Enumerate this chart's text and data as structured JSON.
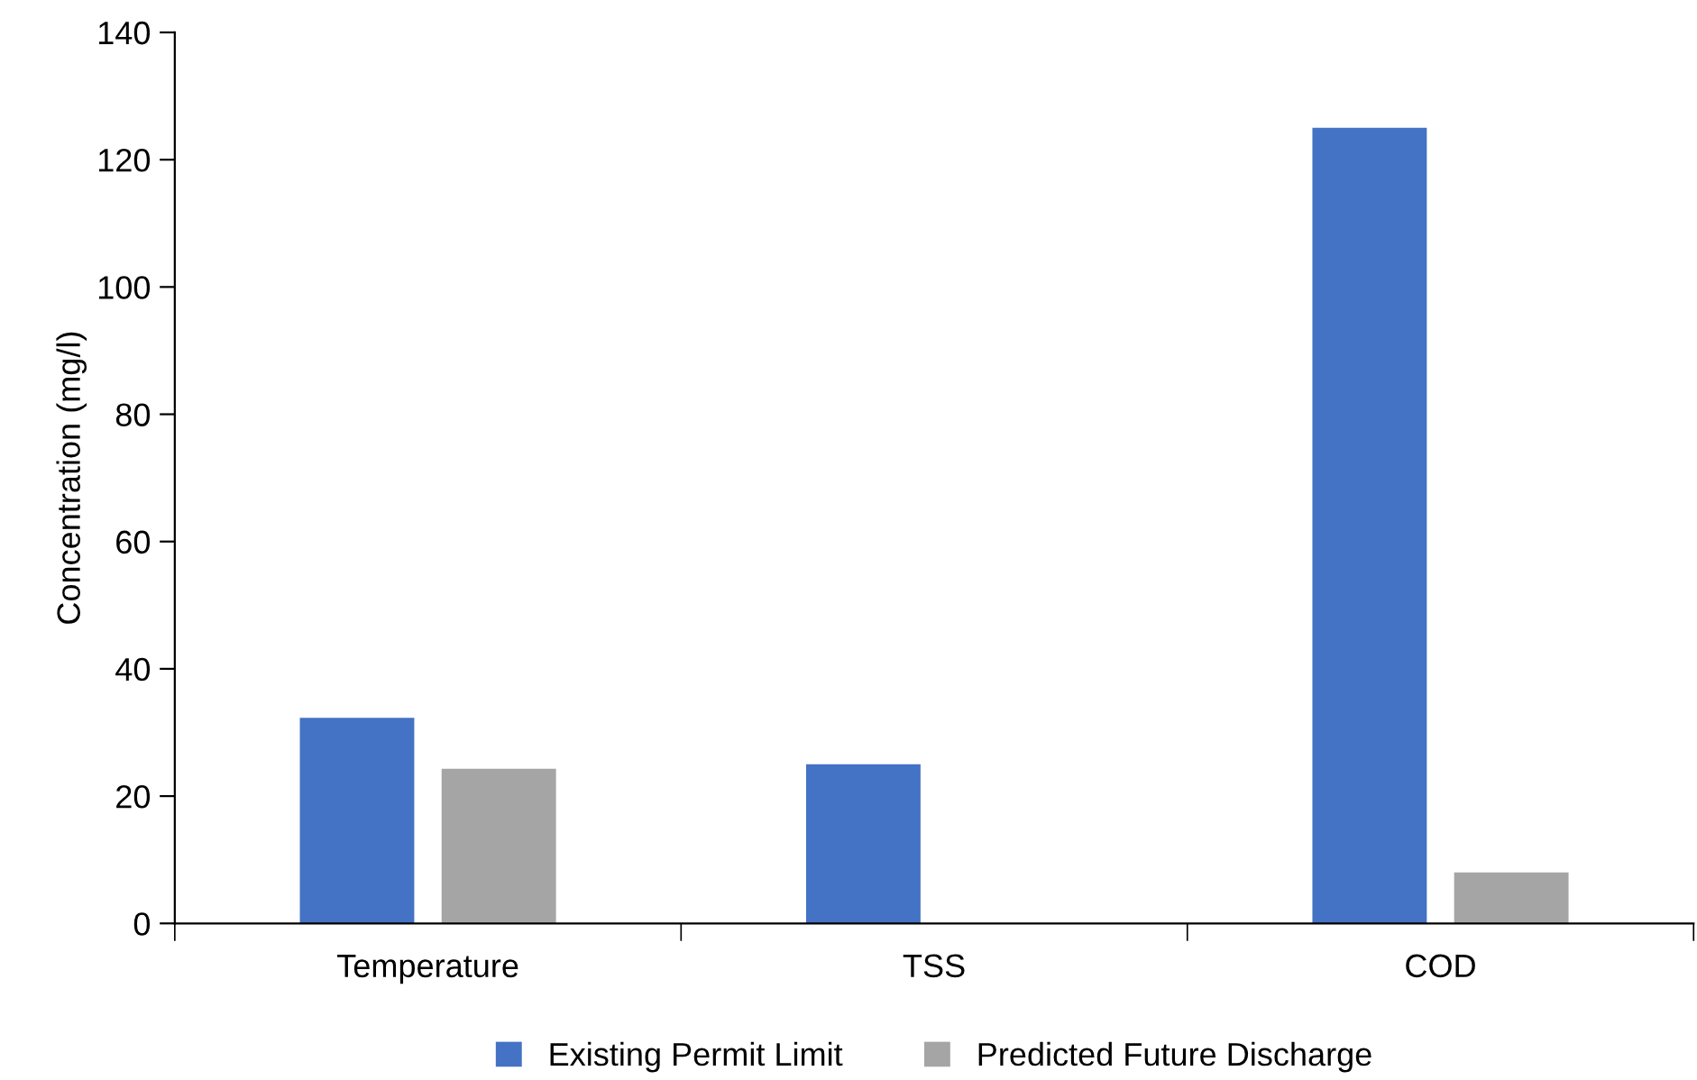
{
  "chart_data": {
    "type": "bar",
    "ylabel": "Concentration (mg/l)",
    "categories": [
      "Temperature",
      "TSS",
      "COD"
    ],
    "series": [
      {
        "name": "Existing Permit Limit",
        "color": "#4472c4",
        "values": [
          32.3,
          25,
          125
        ]
      },
      {
        "name": "Predicted Future Discharge",
        "color": "#a5a5a5",
        "values": [
          24.3,
          null,
          8
        ]
      }
    ],
    "ylim": [
      0,
      140
    ],
    "yticks": [
      0,
      20,
      40,
      60,
      80,
      100,
      120,
      140
    ],
    "legend": "bottom"
  }
}
